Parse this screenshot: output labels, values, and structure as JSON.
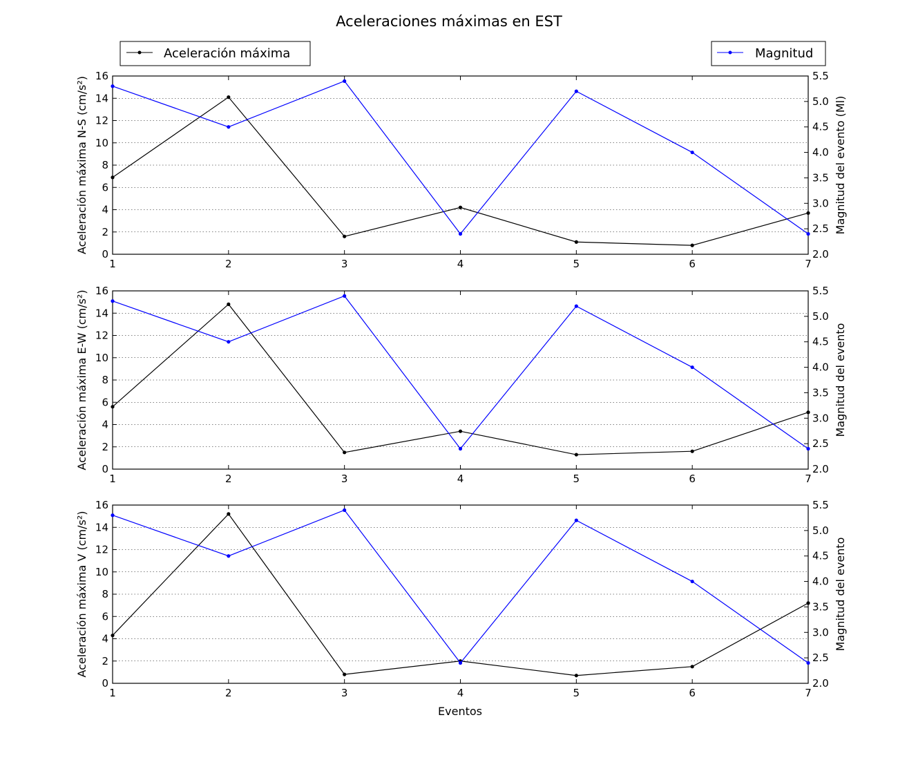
{
  "figure": {
    "title": "Aceleraciones máximas en EST",
    "legend_left": "Aceleración máxima",
    "legend_right": "Magnitud",
    "xlabel": "Eventos"
  },
  "colors": {
    "acceleration": "#000000",
    "magnitude": "#0000ff"
  },
  "chart_data": [
    {
      "type": "line",
      "x": [
        1,
        2,
        3,
        4,
        5,
        6,
        7
      ],
      "xlim": [
        1,
        7
      ],
      "xticks": [
        "1",
        "2",
        "3",
        "4",
        "5",
        "6",
        "7"
      ],
      "ylabel": "Aceleración máxima N-S (cm/s²)",
      "ylim": [
        0,
        16
      ],
      "yticks": [
        "0",
        "2",
        "4",
        "6",
        "8",
        "10",
        "12",
        "14",
        "16"
      ],
      "y2label": "Magnitud del evento (Ml)",
      "y2lim": [
        2.0,
        5.5
      ],
      "y2ticks": [
        "2.0",
        "2.5",
        "3.0",
        "3.5",
        "4.0",
        "4.5",
        "5.0",
        "5.5"
      ],
      "grid": true,
      "series": [
        {
          "name": "Aceleración máxima",
          "axis": "left",
          "values": [
            6.9,
            14.1,
            1.6,
            4.2,
            1.1,
            0.8,
            3.7
          ]
        },
        {
          "name": "Magnitud",
          "axis": "right",
          "values": [
            5.3,
            4.5,
            5.4,
            2.4,
            5.2,
            4.0,
            2.4
          ]
        }
      ]
    },
    {
      "type": "line",
      "x": [
        1,
        2,
        3,
        4,
        5,
        6,
        7
      ],
      "xlim": [
        1,
        7
      ],
      "xticks": [
        "1",
        "2",
        "3",
        "4",
        "5",
        "6",
        "7"
      ],
      "ylabel": "Aceleración máxima E-W (cm/s²)",
      "ylim": [
        0,
        16
      ],
      "yticks": [
        "0",
        "2",
        "4",
        "6",
        "8",
        "10",
        "12",
        "14",
        "16"
      ],
      "y2label": "Magnitud del evento",
      "y2lim": [
        2.0,
        5.5
      ],
      "y2ticks": [
        "2.0",
        "2.5",
        "3.0",
        "3.5",
        "4.0",
        "4.5",
        "5.0",
        "5.5"
      ],
      "grid": true,
      "series": [
        {
          "name": "Aceleración máxima",
          "axis": "left",
          "values": [
            5.6,
            14.8,
            1.5,
            3.4,
            1.3,
            1.6,
            5.1
          ]
        },
        {
          "name": "Magnitud",
          "axis": "right",
          "values": [
            5.3,
            4.5,
            5.4,
            2.4,
            5.2,
            4.0,
            2.4
          ]
        }
      ]
    },
    {
      "type": "line",
      "x": [
        1,
        2,
        3,
        4,
        5,
        6,
        7
      ],
      "xlim": [
        1,
        7
      ],
      "xticks": [
        "1",
        "2",
        "3",
        "4",
        "5",
        "6",
        "7"
      ],
      "ylabel": "Aceleración máxima V (cm/s²)",
      "ylim": [
        0,
        16
      ],
      "yticks": [
        "0",
        "2",
        "4",
        "6",
        "8",
        "10",
        "12",
        "14",
        "16"
      ],
      "y2label": "Magnitud del evento",
      "y2lim": [
        2.0,
        5.5
      ],
      "y2ticks": [
        "2.0",
        "2.5",
        "3.0",
        "3.5",
        "4.0",
        "4.5",
        "5.0",
        "5.5"
      ],
      "grid": true,
      "series": [
        {
          "name": "Aceleración máxima",
          "axis": "left",
          "values": [
            4.3,
            15.2,
            0.8,
            2.0,
            0.7,
            1.5,
            7.2
          ]
        },
        {
          "name": "Magnitud",
          "axis": "right",
          "values": [
            5.3,
            4.5,
            5.4,
            2.4,
            5.2,
            4.0,
            2.4
          ]
        }
      ]
    }
  ]
}
